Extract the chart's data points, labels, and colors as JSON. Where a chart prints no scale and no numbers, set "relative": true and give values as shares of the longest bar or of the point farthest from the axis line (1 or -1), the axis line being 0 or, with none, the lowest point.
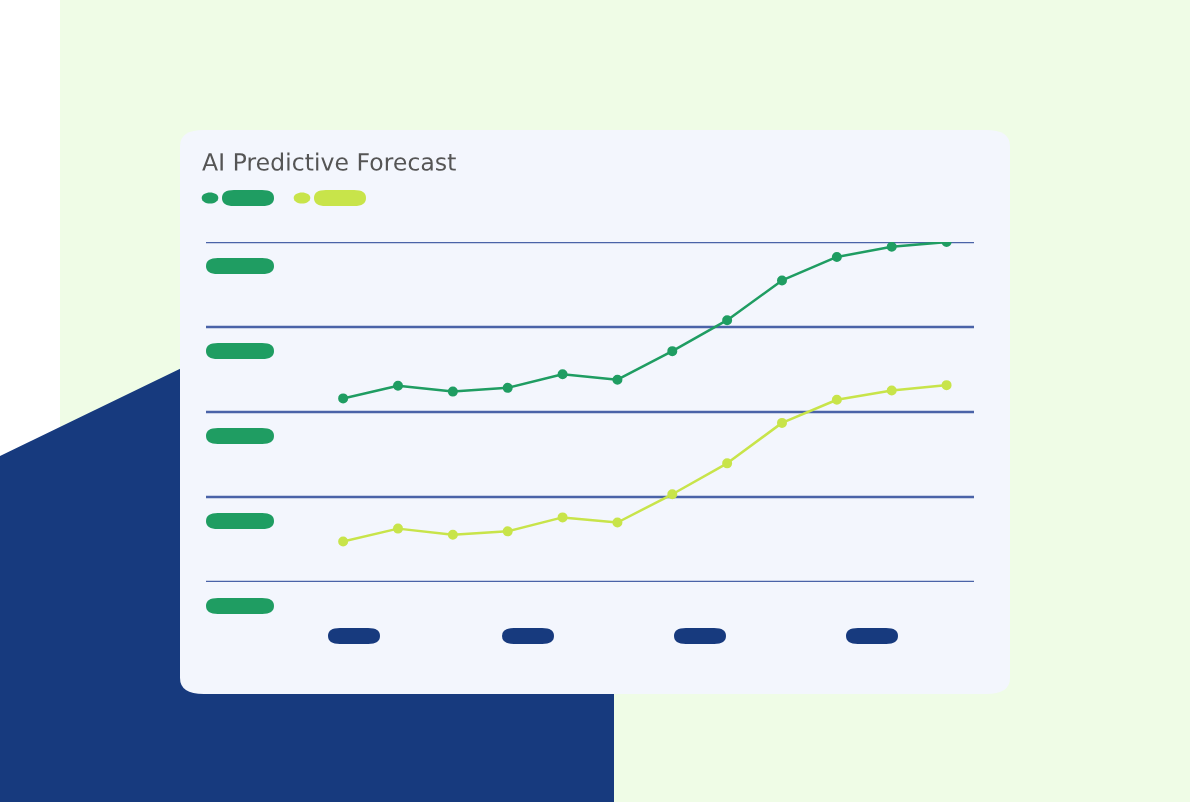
{
  "chart_data": {
    "type": "line",
    "title": "AI Predictive Forecast",
    "relative": true,
    "categories": [
      null,
      null,
      null,
      null,
      null,
      null,
      null,
      null,
      null,
      null,
      null,
      null
    ],
    "series": [
      {
        "color": "#1f9d62",
        "values": [
          0.54,
          0.577,
          0.56,
          0.571,
          0.611,
          0.595,
          0.679,
          0.77,
          0.887,
          0.956,
          0.986,
          1
        ]
      },
      {
        "color": "#c8e44a",
        "values": [
          0.119,
          0.157,
          0.139,
          0.149,
          0.19,
          0.175,
          0.258,
          0.349,
          0.468,
          0.536,
          0.563,
          0.579
        ]
      }
    ],
    "ref_lines": [
      {
        "axis": "y",
        "value": 0,
        "color": "#4a63a8"
      },
      {
        "axis": "y",
        "value": 0.25,
        "color": "#4a63a8"
      },
      {
        "axis": "y",
        "value": 0.5,
        "color": "#4a63a8"
      },
      {
        "axis": "y",
        "value": 0.75,
        "color": "#4a63a8"
      },
      {
        "axis": "y",
        "value": 1,
        "color": "#4a63a8"
      }
    ],
    "marker": "circle",
    "line_style": "solid"
  }
}
